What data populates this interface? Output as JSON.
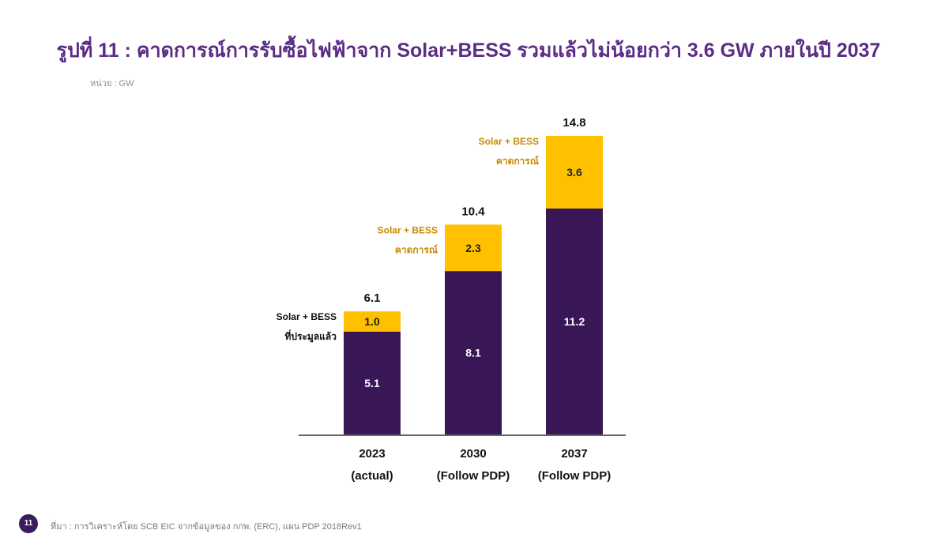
{
  "header": {
    "title": "รูปที่ 11 : คาดการณ์การรับซื้อไฟฟ้าจาก Solar+BESS รวมแล้วไม่น้อยกว่า 3.6 GW ภายในปี 2037",
    "unit": "หน่วย : GW"
  },
  "chart_data": {
    "type": "bar",
    "stacked": true,
    "categories": [
      "2023",
      "2030",
      "2037"
    ],
    "category_sublabels": [
      "(actual)",
      "(Follow PDP)",
      "(Follow PDP)"
    ],
    "series": [
      {
        "values": [
          5.1,
          8.1,
          11.2
        ],
        "color": "#391656",
        "label_color": "#ffffff"
      },
      {
        "values": [
          1.0,
          2.3,
          3.6
        ],
        "color": "#ffc000",
        "label_color": "#222222"
      }
    ],
    "totals": [
      6.1,
      10.4,
      14.8
    ],
    "annotations": [
      {
        "category": "2023",
        "line1": "Solar + BESS",
        "line2": "ที่ประมูลแล้ว",
        "color": "#111111"
      },
      {
        "category": "2030",
        "line1": "Solar + BESS",
        "line2": "คาดการณ์",
        "color": "#c98a00"
      },
      {
        "category": "2037",
        "line1": "Solar + BESS",
        "line2": "คาดการณ์",
        "color": "#c98a00"
      }
    ],
    "ylim": [
      0,
      15
    ],
    "xlabel": "",
    "ylabel": "",
    "grid": false
  },
  "footer": {
    "page_number": "11",
    "source": "ที่มา : การวิเคราะห์โดย SCB EIC จากข้อมูลของ กกพ. (ERC), แผน PDP 2018Rev1"
  }
}
